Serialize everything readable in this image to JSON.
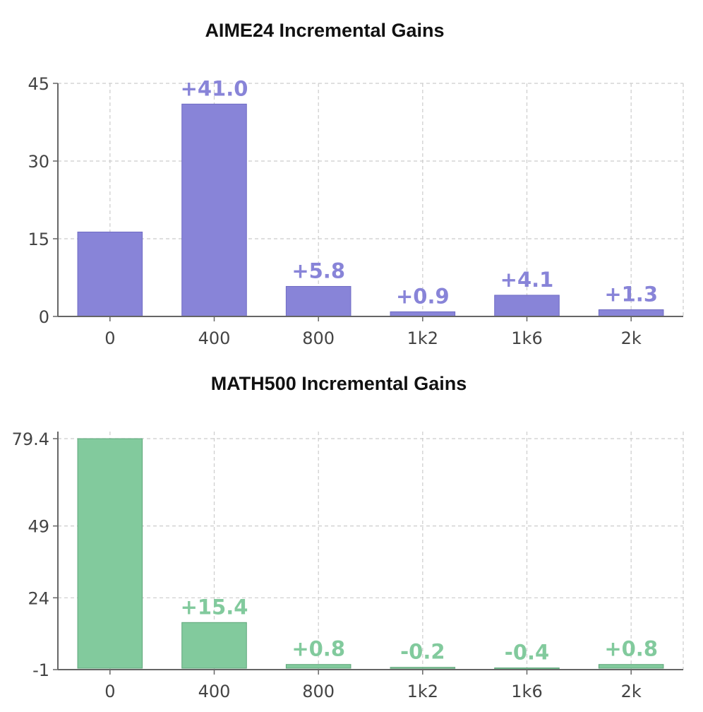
{
  "chart_data": [
    {
      "type": "bar",
      "title": "AIME24 Incremental Gains",
      "xlabel": "",
      "ylabel": "",
      "categories": [
        "0",
        "400",
        "800",
        "1k2",
        "1k6",
        "2k"
      ],
      "values": [
        16.3,
        41.0,
        5.8,
        0.9,
        4.1,
        1.3
      ],
      "data_labels": [
        "",
        "+41.0",
        "+5.8",
        "+0.9",
        "+4.1",
        "+1.3"
      ],
      "yticks": [
        0,
        15,
        30,
        45
      ],
      "ytick_labels": [
        "0",
        "15",
        "30",
        "45"
      ],
      "ylim": [
        0,
        45
      ],
      "grid": true,
      "bar_color": "#8884d8",
      "bar_stroke": "#6f6bc4",
      "label_color": "#8884d8"
    },
    {
      "type": "bar",
      "title": "MATH500 Incremental Gains",
      "xlabel": "",
      "ylabel": "",
      "categories": [
        "0",
        "400",
        "800",
        "1k2",
        "1k6",
        "2k"
      ],
      "values": [
        79.4,
        15.4,
        0.8,
        -0.2,
        -0.4,
        0.8
      ],
      "data_labels": [
        "",
        "+15.4",
        "+0.8",
        "-0.2",
        "-0.4",
        "+0.8"
      ],
      "yticks": [
        -1,
        24,
        49,
        79.4
      ],
      "ytick_labels": [
        "-1",
        "24",
        "49",
        "79.4"
      ],
      "ylim": [
        -1,
        79.4
      ],
      "grid": true,
      "bar_color": "#82ca9d",
      "bar_stroke": "#5fa77a",
      "label_color": "#82ca9d"
    }
  ]
}
